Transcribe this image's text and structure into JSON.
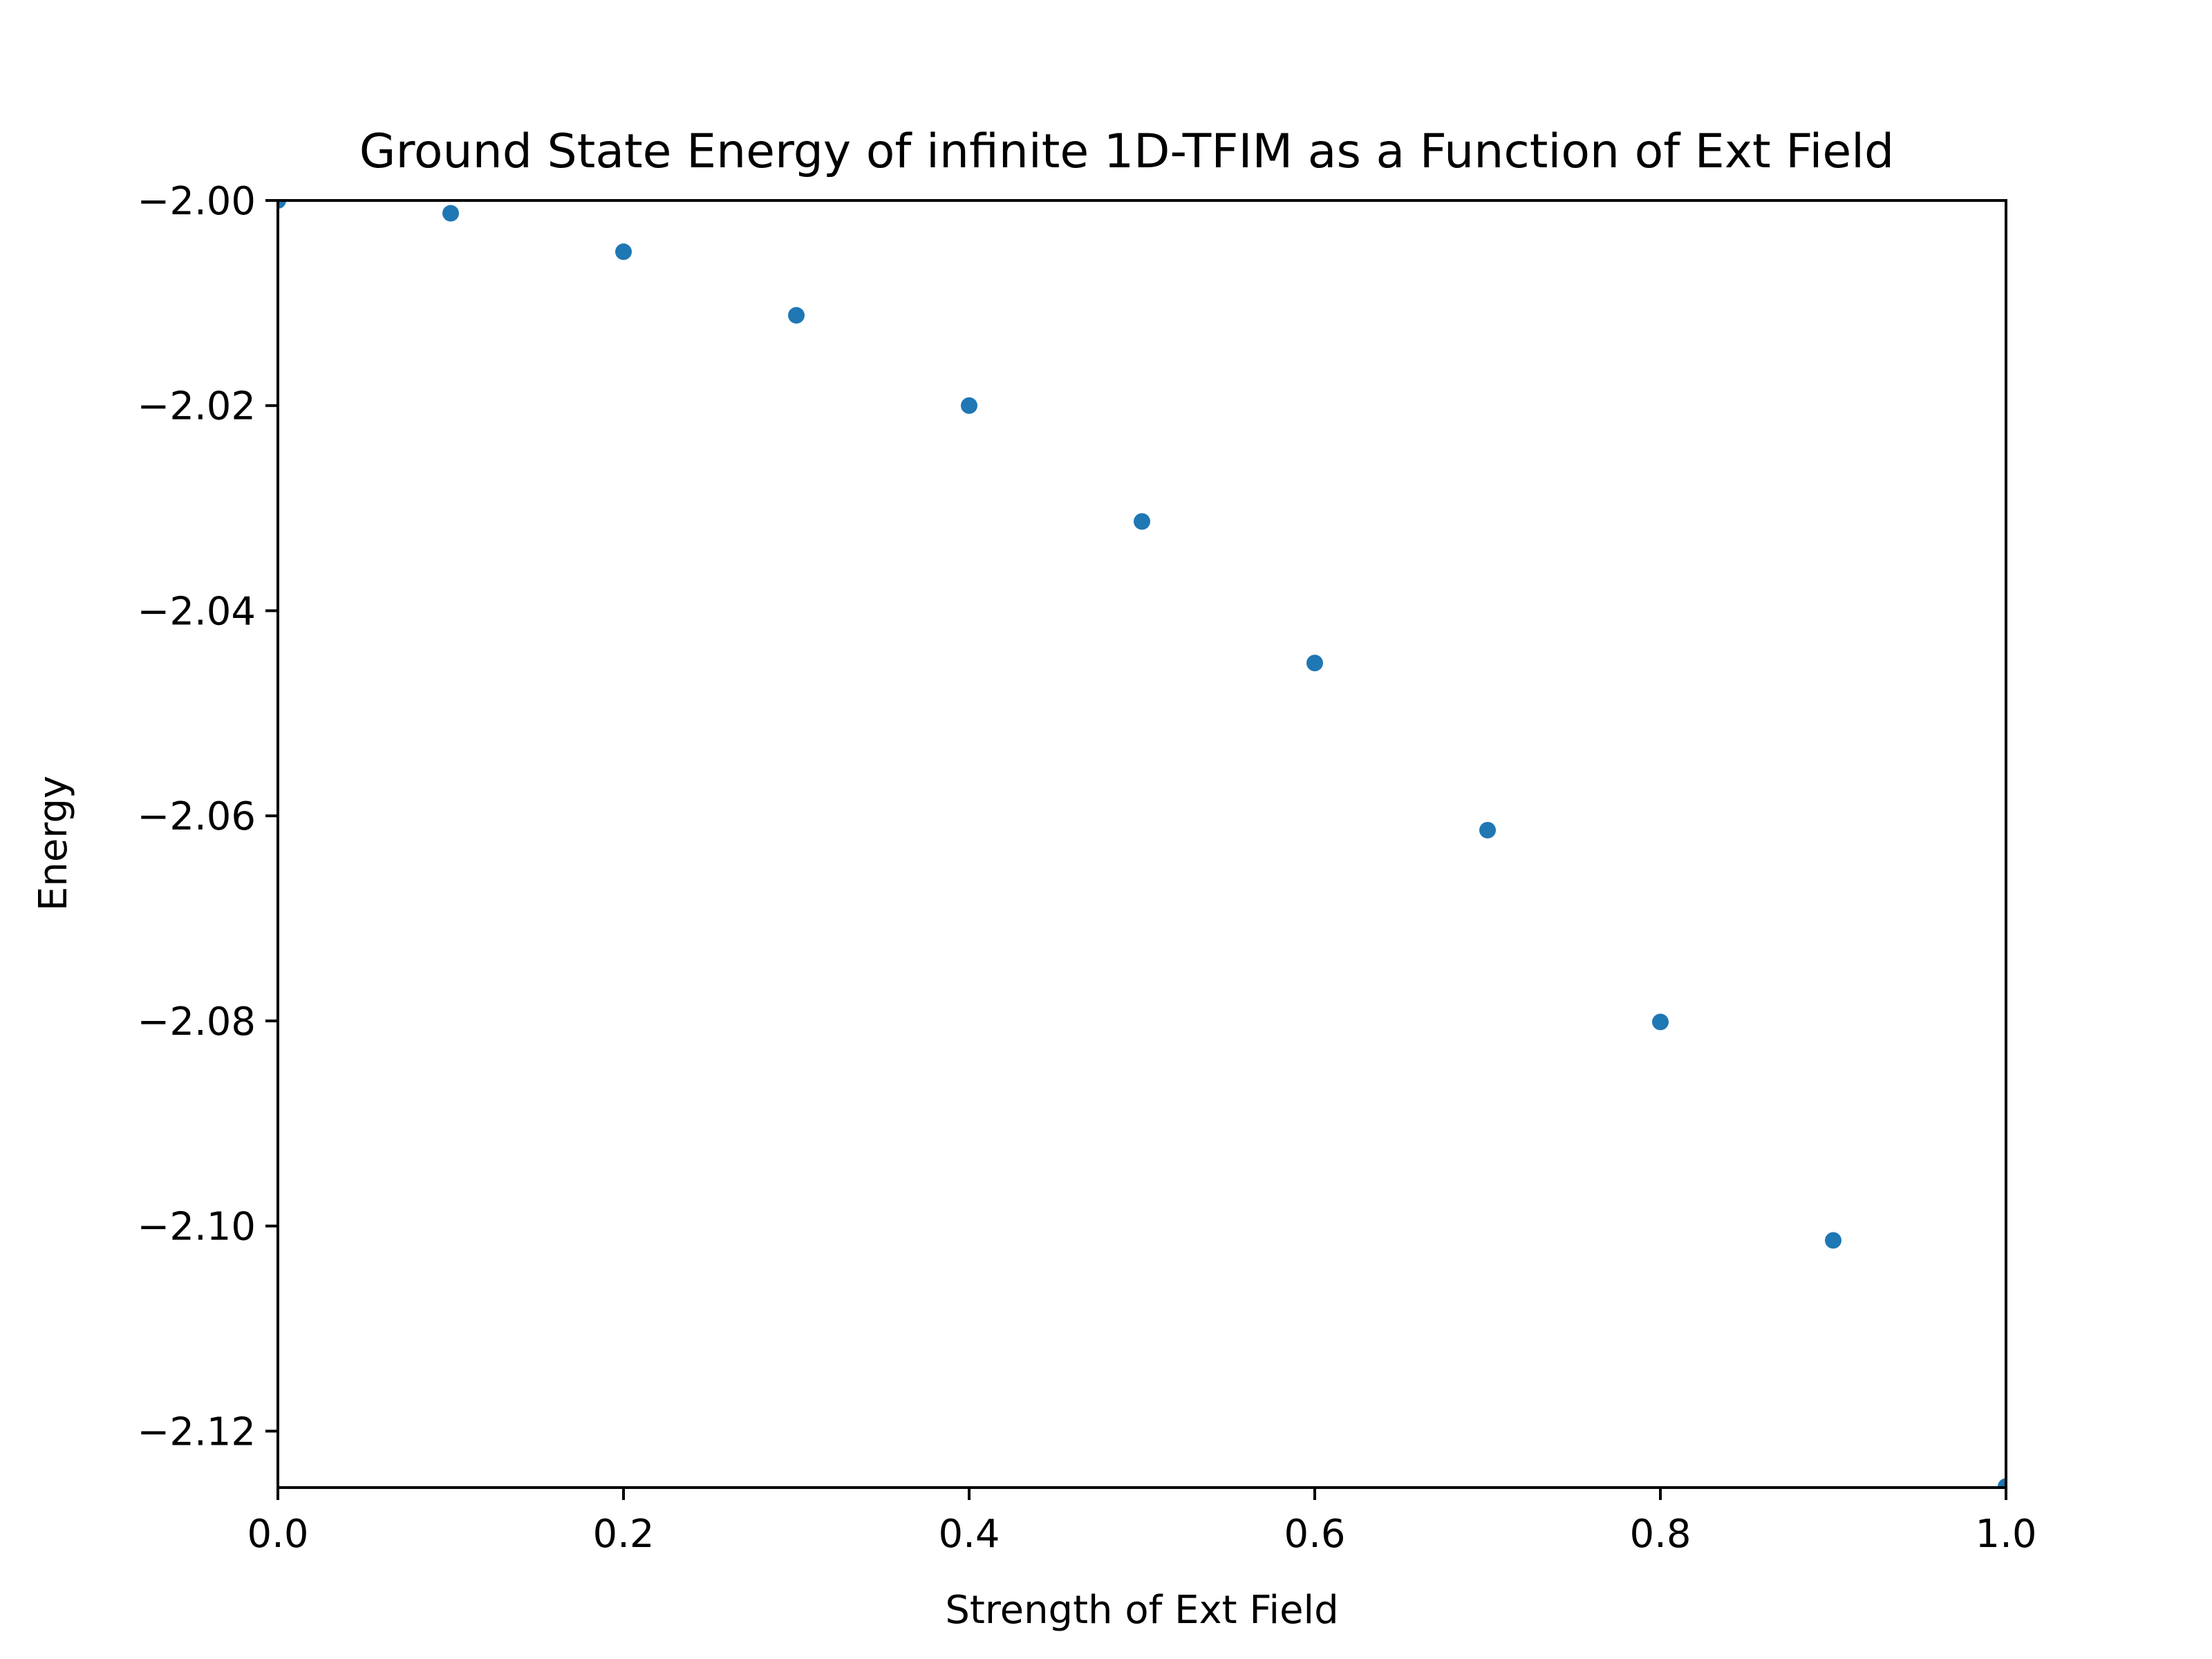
{
  "chart_data": {
    "type": "scatter",
    "title": "Ground State Energy of infinite 1D-TFIM as a Function of Ext Field",
    "xlabel": "Strength of Ext Field",
    "ylabel": "Energy",
    "xlim": [
      0.0,
      1.0
    ],
    "ylim": [
      -2.1255,
      -2.0
    ],
    "x_ticks": [
      0.0,
      0.2,
      0.4,
      0.6,
      0.8,
      1.0
    ],
    "x_tick_labels": [
      "0.0",
      "0.2",
      "0.4",
      "0.6",
      "0.8",
      "1.0"
    ],
    "y_ticks": [
      -2.0,
      -2.02,
      -2.04,
      -2.06,
      -2.08,
      -2.1,
      -2.12
    ],
    "y_tick_labels": [
      "−2.00",
      "−2.02",
      "−2.04",
      "−2.06",
      "−2.08",
      "−2.10",
      "−2.12"
    ],
    "grid": false,
    "series": [
      {
        "name": "Energy",
        "color": "#1f77b4",
        "x": [
          0.0,
          0.1,
          0.2,
          0.3,
          0.4,
          0.5,
          0.6,
          0.7,
          0.8,
          0.9,
          1.0
        ],
        "y": [
          -2.0,
          -2.00125,
          -2.005,
          -2.0112,
          -2.02,
          -2.0313,
          -2.0451,
          -2.0614,
          -2.0801,
          -2.1014,
          -2.1254
        ]
      }
    ]
  }
}
